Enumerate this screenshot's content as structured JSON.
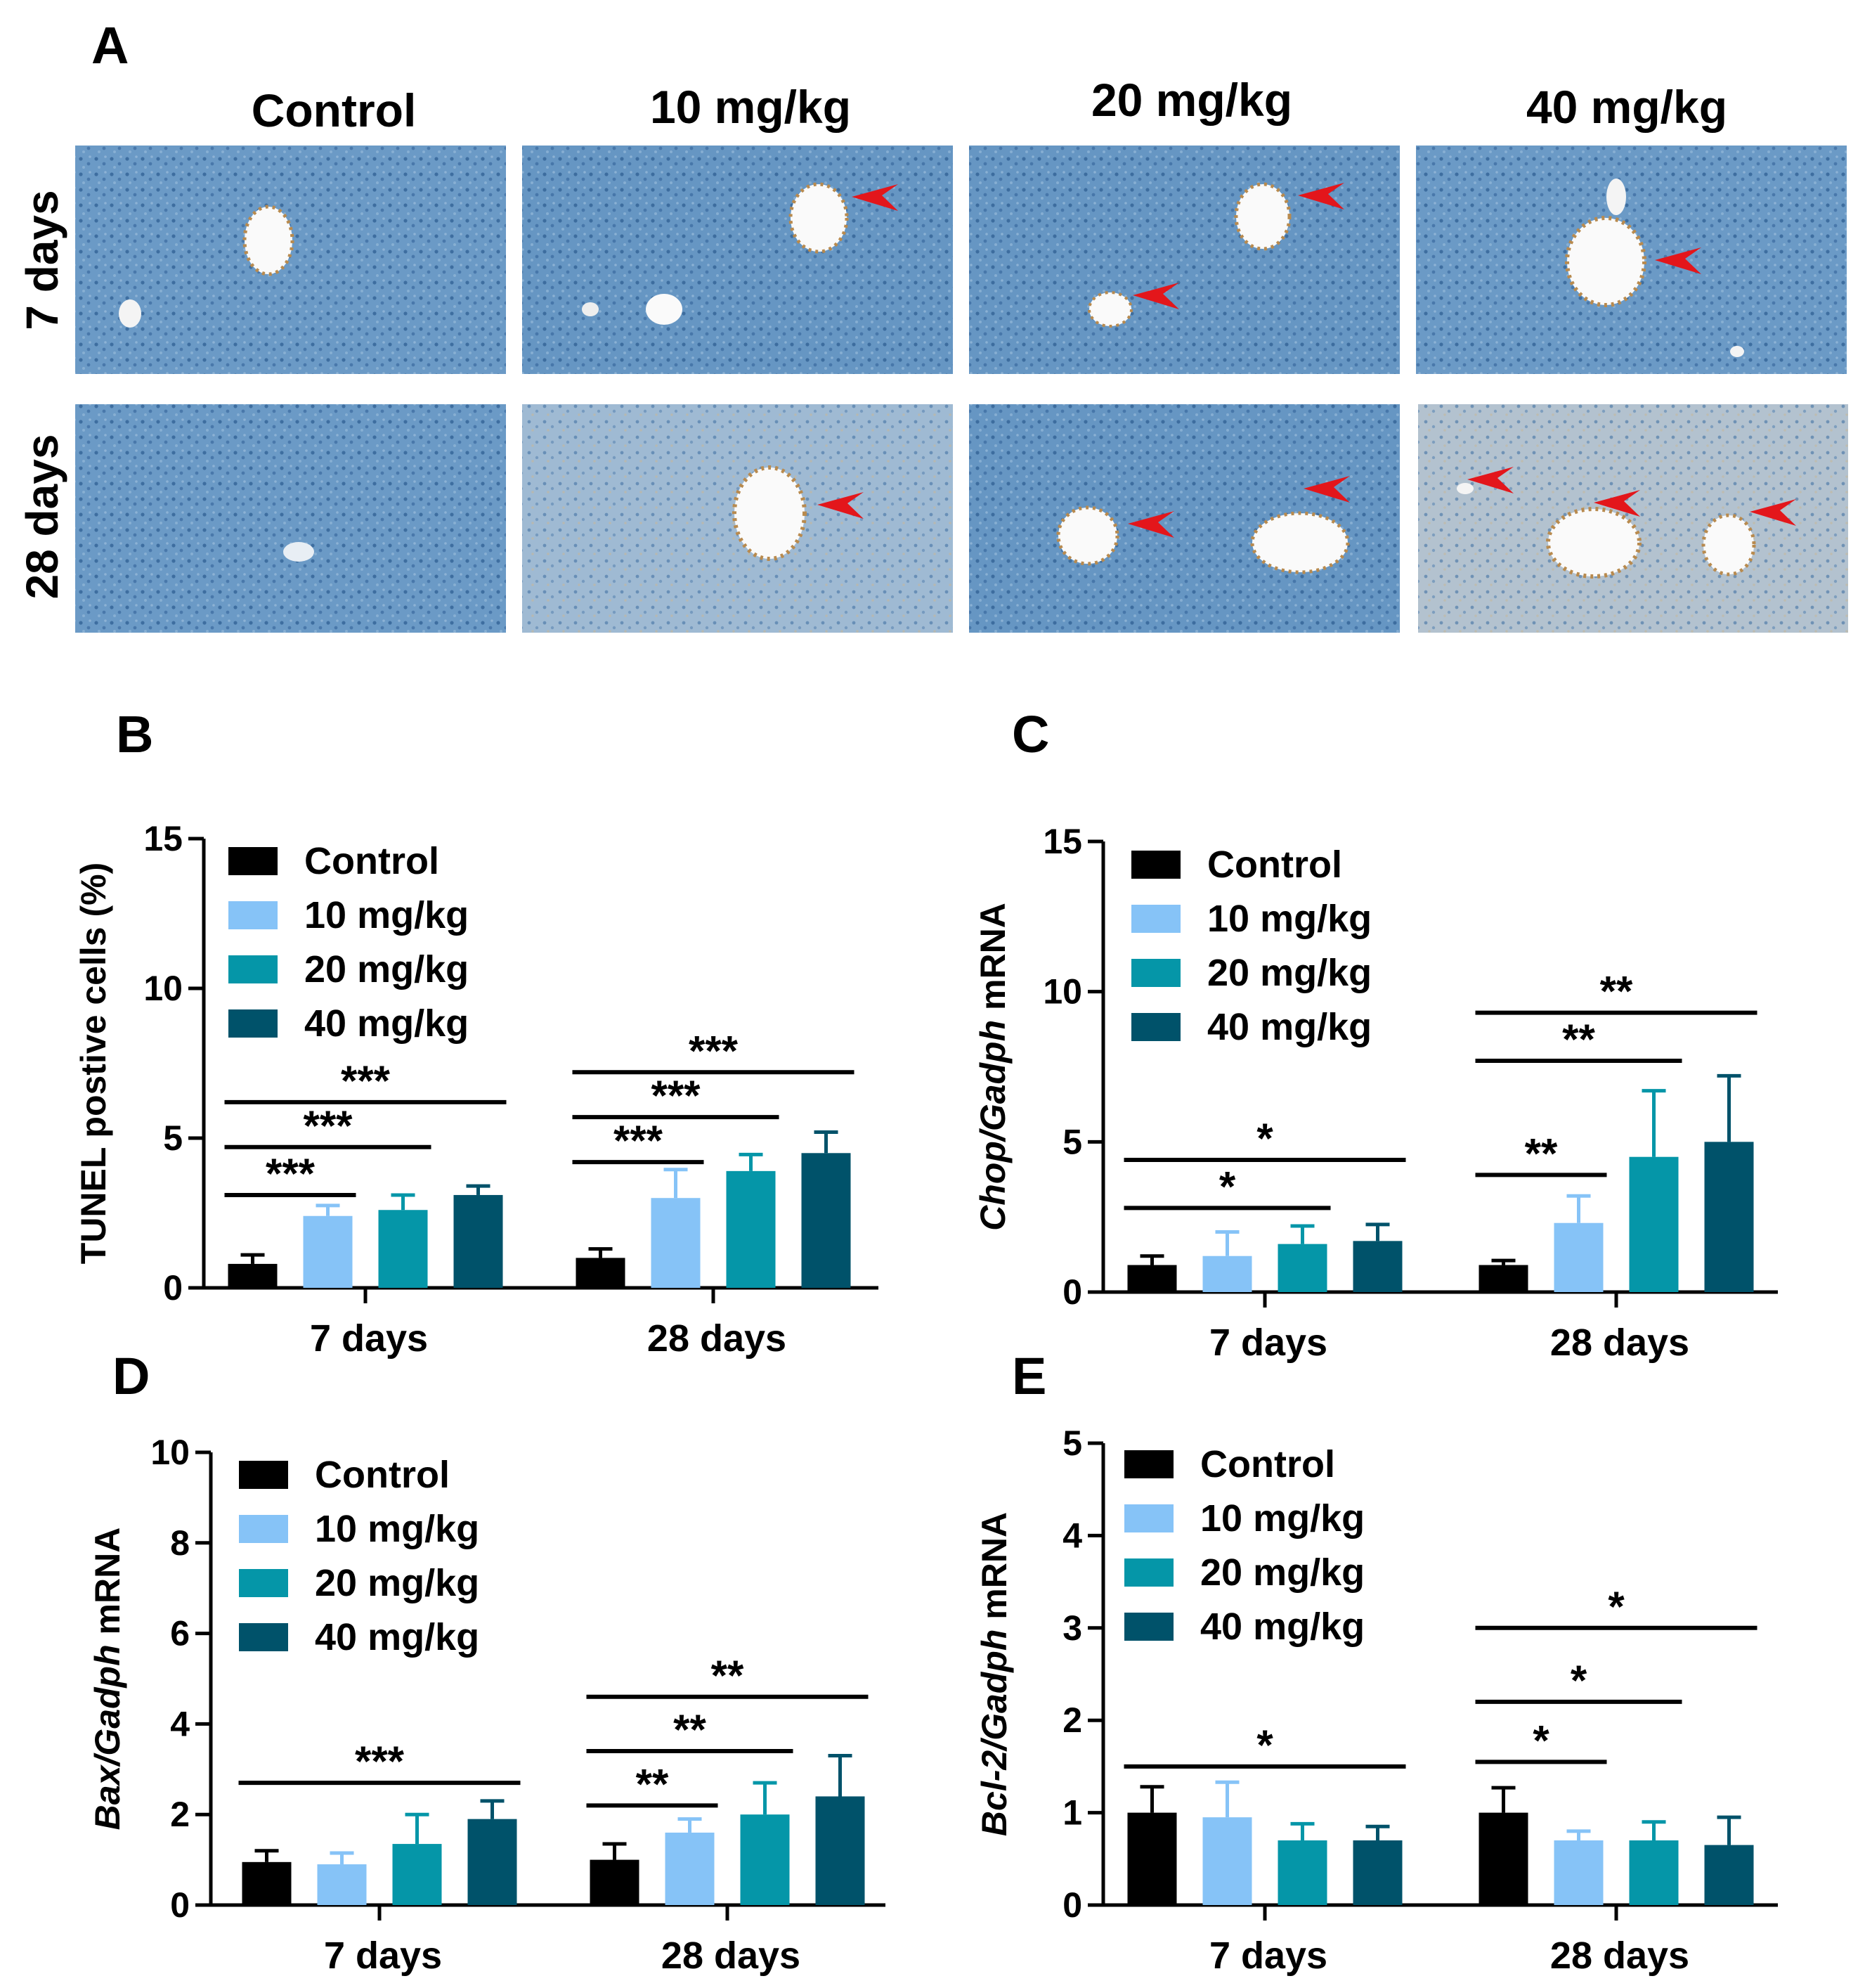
{
  "panel_a": {
    "label": "A",
    "columns": [
      "Control",
      "10 mg/kg",
      "20 mg/kg",
      "40 mg/kg"
    ],
    "rows": [
      "7 days",
      "28 days"
    ],
    "tissue_color": "#5c90bf",
    "stain_color": "#b07a3a",
    "arrow_color": "#e3161b"
  },
  "colors": {
    "Control": "#000000",
    "10 mg/kg": "#86c3f7",
    "20 mg/kg": "#0596a8",
    "40 mg/kg": "#00526a"
  },
  "chart_data": [
    {
      "id": "B",
      "label": "B",
      "type": "bar",
      "categories": [
        "7 days",
        "28 days"
      ],
      "series": [
        {
          "name": "Control",
          "values": [
            0.8,
            1.0
          ],
          "errors": [
            0.3,
            0.3
          ]
        },
        {
          "name": "10 mg/kg",
          "values": [
            2.4,
            3.0
          ],
          "errors": [
            0.35,
            0.95
          ]
        },
        {
          "name": "20 mg/kg",
          "values": [
            2.6,
            3.9
          ],
          "errors": [
            0.5,
            0.55
          ]
        },
        {
          "name": "40 mg/kg",
          "values": [
            3.1,
            4.5
          ],
          "errors": [
            0.3,
            0.7
          ]
        }
      ],
      "ylabel": {
        "italic": "",
        "rest": "TUNEL postive cells (%)"
      },
      "ylim": [
        0,
        15
      ],
      "yticks": [
        "0",
        "5",
        "10",
        "15"
      ],
      "significance": [
        {
          "category": 0,
          "from": 0,
          "to": 1,
          "text": "***",
          "value": 3.1
        },
        {
          "category": 0,
          "from": 0,
          "to": 2,
          "text": "***",
          "value": 4.7
        },
        {
          "category": 0,
          "from": 0,
          "to": 3,
          "text": "***",
          "value": 6.2
        },
        {
          "category": 1,
          "from": 0,
          "to": 1,
          "text": "***",
          "value": 4.2
        },
        {
          "category": 1,
          "from": 0,
          "to": 2,
          "text": "***",
          "value": 5.7
        },
        {
          "category": 1,
          "from": 0,
          "to": 3,
          "text": "***",
          "value": 7.2
        }
      ]
    },
    {
      "id": "C",
      "label": "C",
      "type": "bar",
      "categories": [
        "7 days",
        "28 days"
      ],
      "series": [
        {
          "name": "Control",
          "values": [
            0.9,
            0.9
          ],
          "errors": [
            0.3,
            0.15
          ]
        },
        {
          "name": "10 mg/kg",
          "values": [
            1.2,
            2.3
          ],
          "errors": [
            0.8,
            0.9
          ]
        },
        {
          "name": "20 mg/kg",
          "values": [
            1.6,
            4.5
          ],
          "errors": [
            0.6,
            2.2
          ]
        },
        {
          "name": "40 mg/kg",
          "values": [
            1.7,
            5.0
          ],
          "errors": [
            0.55,
            2.2
          ]
        }
      ],
      "ylabel": {
        "italic": "Chop/Gadph",
        "rest": " mRNA"
      },
      "ylim": [
        0,
        15
      ],
      "yticks": [
        "0",
        "5",
        "10",
        "15"
      ],
      "significance": [
        {
          "category": 0,
          "from": 0,
          "to": 2,
          "text": "*",
          "value": 2.8
        },
        {
          "category": 0,
          "from": 0,
          "to": 3,
          "text": "*",
          "value": 4.4
        },
        {
          "category": 1,
          "from": 0,
          "to": 1,
          "text": "**",
          "value": 3.9
        },
        {
          "category": 1,
          "from": 0,
          "to": 2,
          "text": "**",
          "value": 7.7
        },
        {
          "category": 1,
          "from": 0,
          "to": 3,
          "text": "**",
          "value": 9.3
        }
      ]
    },
    {
      "id": "D",
      "label": "D",
      "type": "bar",
      "categories": [
        "7 days",
        "28 days"
      ],
      "series": [
        {
          "name": "Control",
          "values": [
            0.95,
            1.0
          ],
          "errors": [
            0.25,
            0.35
          ]
        },
        {
          "name": "10 mg/kg",
          "values": [
            0.9,
            1.6
          ],
          "errors": [
            0.25,
            0.3
          ]
        },
        {
          "name": "20 mg/kg",
          "values": [
            1.35,
            2.0
          ],
          "errors": [
            0.65,
            0.7
          ]
        },
        {
          "name": "40 mg/kg",
          "values": [
            1.9,
            2.4
          ],
          "errors": [
            0.4,
            0.9
          ]
        }
      ],
      "ylabel": {
        "italic": "Bax/Gadph",
        "rest": " mRNA"
      },
      "ylim": [
        0,
        10
      ],
      "yticks": [
        "0",
        "2",
        "4",
        "6",
        "8",
        "10"
      ],
      "significance": [
        {
          "category": 0,
          "from": 0,
          "to": 3,
          "text": "***",
          "value": 2.7
        },
        {
          "category": 1,
          "from": 0,
          "to": 1,
          "text": "**",
          "value": 2.2
        },
        {
          "category": 1,
          "from": 0,
          "to": 2,
          "text": "**",
          "value": 3.4
        },
        {
          "category": 1,
          "from": 0,
          "to": 3,
          "text": "**",
          "value": 4.6
        }
      ]
    },
    {
      "id": "E",
      "label": "E",
      "type": "bar",
      "categories": [
        "7 days",
        "28 days"
      ],
      "series": [
        {
          "name": "Control",
          "values": [
            1.0,
            1.0
          ],
          "errors": [
            0.28,
            0.27
          ]
        },
        {
          "name": "10 mg/kg",
          "values": [
            0.95,
            0.7
          ],
          "errors": [
            0.38,
            0.1
          ]
        },
        {
          "name": "20 mg/kg",
          "values": [
            0.7,
            0.7
          ],
          "errors": [
            0.18,
            0.2
          ]
        },
        {
          "name": "40 mg/kg",
          "values": [
            0.7,
            0.65
          ],
          "errors": [
            0.15,
            0.3
          ]
        }
      ],
      "ylabel": {
        "italic": "Bcl-2/Gadph",
        "rest": " mRNA"
      },
      "ylim": [
        0,
        5
      ],
      "yticks": [
        "0",
        "1",
        "2",
        "3",
        "4",
        "5"
      ],
      "significance": [
        {
          "category": 0,
          "from": 0,
          "to": 3,
          "text": "*",
          "value": 1.5
        },
        {
          "category": 1,
          "from": 0,
          "to": 1,
          "text": "*",
          "value": 1.55
        },
        {
          "category": 1,
          "from": 0,
          "to": 2,
          "text": "*",
          "value": 2.2
        },
        {
          "category": 1,
          "from": 0,
          "to": 3,
          "text": "*",
          "value": 3.0
        }
      ]
    }
  ]
}
